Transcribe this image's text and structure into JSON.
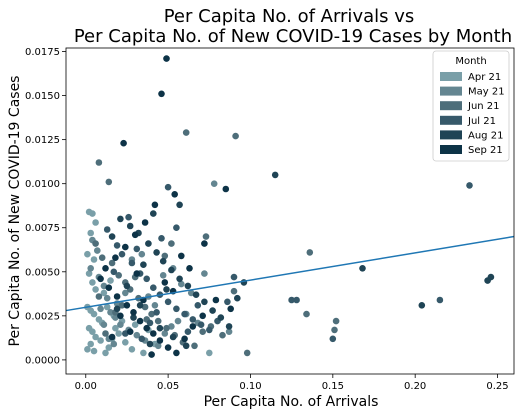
{
  "chart_data": {
    "type": "scatter",
    "title": "Per Capita No. of Arrivals vs\nPer Capita No. of New COVID-19 Cases by Month",
    "xlabel": "Per Capita No. of Arrivals",
    "ylabel": "Per Capita No. of New COVID-19 Cases",
    "xlim": [
      -0.012,
      0.26
    ],
    "ylim": [
      -0.0008,
      0.0177
    ],
    "xticks": [
      0.0,
      0.05,
      0.1,
      0.15,
      0.2,
      0.25
    ],
    "xtick_labels": [
      "0.00",
      "0.05",
      "0.10",
      "0.15",
      "0.20",
      "0.25"
    ],
    "yticks": [
      0.0,
      0.0025,
      0.005,
      0.0075,
      0.01,
      0.0125,
      0.015,
      0.0175
    ],
    "ytick_labels": [
      "0.0000",
      "0.0025",
      "0.0050",
      "0.0075",
      "0.0100",
      "0.0125",
      "0.0150",
      "0.0175"
    ],
    "grid": false,
    "legend": {
      "title": "Month",
      "placement": "top-right",
      "entries": [
        "Apr 21",
        "May 21",
        "Jun 21",
        "Jul 21",
        "Aug 21",
        "Sep 21"
      ]
    },
    "trendline": {
      "color": "#1f77b4",
      "x": [
        -0.012,
        0.26
      ],
      "y": [
        0.0028,
        0.007
      ]
    },
    "series": [
      {
        "name": "Apr 21",
        "color": "#7a9fa8",
        "points": [
          [
            0.002,
            0.0084
          ],
          [
            0.004,
            0.0083
          ],
          [
            0.006,
            0.0078
          ],
          [
            0.003,
            0.0072
          ],
          [
            0.001,
            0.006
          ],
          [
            0.005,
            0.0057
          ],
          [
            0.002,
            0.0049
          ],
          [
            0.004,
            0.0044
          ],
          [
            0.006,
            0.004
          ],
          [
            0.001,
            0.003
          ],
          [
            0.003,
            0.0028
          ],
          [
            0.005,
            0.0026
          ],
          [
            0.008,
            0.0023
          ],
          [
            0.01,
            0.0021
          ],
          [
            0.002,
            0.0018
          ],
          [
            0.004,
            0.0016
          ],
          [
            0.006,
            0.0013
          ],
          [
            0.009,
            0.0011
          ],
          [
            0.003,
            0.0009
          ],
          [
            0.001,
            0.0006
          ],
          [
            0.005,
            0.0005
          ],
          [
            0.012,
            0.0004
          ],
          [
            0.014,
            0.0007
          ],
          [
            0.016,
            0.0012
          ],
          [
            0.018,
            0.0018
          ],
          [
            0.02,
            0.0015
          ],
          [
            0.024,
            0.001
          ],
          [
            0.028,
            0.0006
          ],
          [
            0.035,
            0.0004
          ],
          [
            0.042,
            0.0009
          ],
          [
            0.075,
            0.0004
          ],
          [
            0.013,
            0.003
          ],
          [
            0.017,
            0.0025
          ],
          [
            0.022,
            0.0022
          ],
          [
            0.03,
            0.002
          ],
          [
            0.038,
            0.0017
          ],
          [
            0.011,
            0.0038
          ],
          [
            0.015,
            0.0045
          ]
        ]
      },
      {
        "name": "May 21",
        "color": "#648691",
        "points": [
          [
            0.004,
            0.0068
          ],
          [
            0.007,
            0.0062
          ],
          [
            0.003,
            0.0052
          ],
          [
            0.008,
            0.0047
          ],
          [
            0.011,
            0.0042
          ],
          [
            0.013,
            0.0035
          ],
          [
            0.009,
            0.0029
          ],
          [
            0.015,
            0.0027
          ],
          [
            0.018,
            0.0024
          ],
          [
            0.021,
            0.002
          ],
          [
            0.026,
            0.0017
          ],
          [
            0.031,
            0.0014
          ],
          [
            0.036,
            0.0011
          ],
          [
            0.044,
            0.0008
          ],
          [
            0.048,
            0.0015
          ],
          [
            0.052,
            0.0019
          ],
          [
            0.056,
            0.0022
          ],
          [
            0.061,
            0.0026
          ],
          [
            0.068,
            0.0021
          ],
          [
            0.072,
            0.0049
          ],
          [
            0.078,
            0.01
          ],
          [
            0.087,
            0.0016
          ],
          [
            0.034,
            0.006
          ],
          [
            0.028,
            0.0057
          ],
          [
            0.038,
            0.0036
          ],
          [
            0.042,
            0.0031
          ],
          [
            0.019,
            0.0032
          ],
          [
            0.024,
            0.0038
          ],
          [
            0.011,
            0.002
          ],
          [
            0.014,
            0.0012
          ],
          [
            0.017,
            0.0009
          ],
          [
            0.058,
            0.0043
          ],
          [
            0.064,
            0.0038
          ],
          [
            0.047,
            0.0048
          ],
          [
            0.053,
            0.0052
          ]
        ]
      },
      {
        "name": "Jun 21",
        "color": "#4e6e7a",
        "points": [
          [
            0.008,
            0.0112
          ],
          [
            0.014,
            0.0101
          ],
          [
            0.006,
            0.0066
          ],
          [
            0.01,
            0.0058
          ],
          [
            0.016,
            0.0055
          ],
          [
            0.02,
            0.0048
          ],
          [
            0.024,
            0.0044
          ],
          [
            0.027,
            0.004
          ],
          [
            0.032,
            0.0035
          ],
          [
            0.036,
            0.003
          ],
          [
            0.04,
            0.0026
          ],
          [
            0.044,
            0.0022
          ],
          [
            0.049,
            0.0018
          ],
          [
            0.054,
            0.0014
          ],
          [
            0.059,
            0.001
          ],
          [
            0.066,
            0.0008
          ],
          [
            0.071,
            0.0016
          ],
          [
            0.076,
            0.0019
          ],
          [
            0.083,
            0.0014
          ],
          [
            0.09,
            0.0039
          ],
          [
            0.098,
            0.0004
          ],
          [
            0.136,
            0.0061
          ],
          [
            0.134,
            0.0026
          ],
          [
            0.152,
            0.0022
          ],
          [
            0.151,
            0.0017
          ],
          [
            0.061,
            0.0129
          ],
          [
            0.091,
            0.0127
          ],
          [
            0.073,
            0.007
          ],
          [
            0.052,
            0.0066
          ],
          [
            0.048,
            0.0059
          ],
          [
            0.03,
            0.0047
          ],
          [
            0.022,
            0.0031
          ],
          [
            0.037,
            0.0023
          ],
          [
            0.012,
            0.0015
          ],
          [
            0.018,
            0.0027
          ],
          [
            0.008,
            0.0036
          ]
        ]
      },
      {
        "name": "Jul 21",
        "color": "#36596a",
        "points": [
          [
            0.013,
            0.0074
          ],
          [
            0.019,
            0.0065
          ],
          [
            0.022,
            0.006
          ],
          [
            0.028,
            0.0055
          ],
          [
            0.033,
            0.0049
          ],
          [
            0.037,
            0.0046
          ],
          [
            0.041,
            0.0041
          ],
          [
            0.045,
            0.0037
          ],
          [
            0.05,
            0.0033
          ],
          [
            0.055,
            0.0029
          ],
          [
            0.06,
            0.0026
          ],
          [
            0.065,
            0.0023
          ],
          [
            0.07,
            0.002
          ],
          [
            0.075,
            0.0017
          ],
          [
            0.08,
            0.0022
          ],
          [
            0.086,
            0.0033
          ],
          [
            0.09,
            0.0047
          ],
          [
            0.125,
            0.0034
          ],
          [
            0.128,
            0.0034
          ],
          [
            0.15,
            0.0012
          ],
          [
            0.215,
            0.0034
          ],
          [
            0.233,
            0.0099
          ],
          [
            0.05,
            0.0098
          ],
          [
            0.055,
            0.0075
          ],
          [
            0.046,
            0.0069
          ],
          [
            0.031,
            0.0063
          ],
          [
            0.026,
            0.0081
          ],
          [
            0.017,
            0.005
          ],
          [
            0.039,
            0.0021
          ],
          [
            0.024,
            0.0015
          ],
          [
            0.034,
            0.0012
          ],
          [
            0.043,
            0.0027
          ],
          [
            0.062,
            0.0016
          ],
          [
            0.068,
            0.0031
          ]
        ]
      },
      {
        "name": "Aug 21",
        "color": "#1f4455",
        "points": [
          [
            0.016,
            0.007
          ],
          [
            0.021,
            0.008
          ],
          [
            0.027,
            0.0076
          ],
          [
            0.032,
            0.0072
          ],
          [
            0.038,
            0.0066
          ],
          [
            0.043,
            0.0061
          ],
          [
            0.047,
            0.0056
          ],
          [
            0.052,
            0.0051
          ],
          [
            0.057,
            0.0046
          ],
          [
            0.062,
            0.0042
          ],
          [
            0.067,
            0.0037
          ],
          [
            0.072,
            0.0033
          ],
          [
            0.077,
            0.0028
          ],
          [
            0.082,
            0.0024
          ],
          [
            0.087,
            0.0019
          ],
          [
            0.092,
            0.0035
          ],
          [
            0.096,
            0.0044
          ],
          [
            0.115,
            0.0105
          ],
          [
            0.168,
            0.0052
          ],
          [
            0.204,
            0.0031
          ],
          [
            0.244,
            0.0045
          ],
          [
            0.246,
            0.0047
          ],
          [
            0.057,
            0.0088
          ],
          [
            0.041,
            0.0083
          ],
          [
            0.035,
            0.0054
          ],
          [
            0.025,
            0.0042
          ],
          [
            0.019,
            0.0029
          ],
          [
            0.029,
            0.0024
          ],
          [
            0.045,
            0.0018
          ],
          [
            0.053,
            0.0013
          ],
          [
            0.039,
            0.0009
          ],
          [
            0.061,
            0.0008
          ],
          [
            0.033,
            0.0031
          ],
          [
            0.049,
            0.004
          ]
        ]
      },
      {
        "name": "Sep 21",
        "color": "#0d3347",
        "points": [
          [
            0.049,
            0.0171
          ],
          [
            0.046,
            0.0151
          ],
          [
            0.023,
            0.0123
          ],
          [
            0.085,
            0.0097
          ],
          [
            0.054,
            0.0094
          ],
          [
            0.042,
            0.0088
          ],
          [
            0.036,
            0.0078
          ],
          [
            0.03,
            0.0071
          ],
          [
            0.024,
            0.0064
          ],
          [
            0.018,
            0.0058
          ],
          [
            0.012,
            0.0052
          ],
          [
            0.009,
            0.0046
          ],
          [
            0.014,
            0.0041
          ],
          [
            0.019,
            0.0036
          ],
          [
            0.025,
            0.0031
          ],
          [
            0.029,
            0.0027
          ],
          [
            0.033,
            0.0022
          ],
          [
            0.037,
            0.0018
          ],
          [
            0.041,
            0.0015
          ],
          [
            0.045,
            0.0011
          ],
          [
            0.05,
            0.0007
          ],
          [
            0.055,
            0.0004
          ],
          [
            0.06,
            0.0012
          ],
          [
            0.065,
            0.0019
          ],
          [
            0.071,
            0.0025
          ],
          [
            0.079,
            0.0034
          ],
          [
            0.088,
            0.0029
          ],
          [
            0.058,
            0.0059
          ],
          [
            0.063,
            0.0052
          ],
          [
            0.048,
            0.0044
          ],
          [
            0.053,
            0.0039
          ],
          [
            0.031,
            0.0049
          ],
          [
            0.035,
            0.0034
          ],
          [
            0.021,
            0.0025
          ],
          [
            0.027,
            0.0016
          ],
          [
            0.016,
            0.0013
          ],
          [
            0.04,
            0.0003
          ],
          [
            0.072,
            0.0066
          ]
        ]
      }
    ]
  }
}
